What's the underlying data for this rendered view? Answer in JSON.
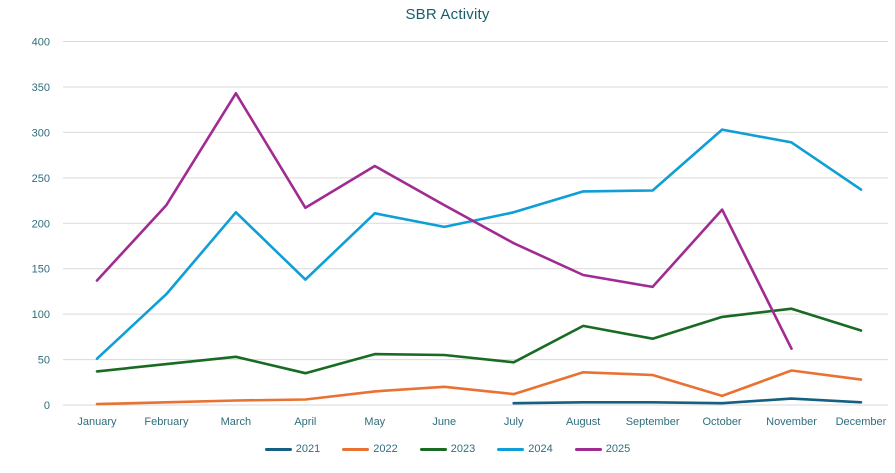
{
  "chart_data": {
    "type": "line",
    "title": "SBR Activity",
    "categories": [
      "January",
      "February",
      "March",
      "April",
      "May",
      "June",
      "July",
      "August",
      "September",
      "October",
      "November",
      "December"
    ],
    "series": [
      {
        "name": "2021",
        "color": "#156082",
        "values": [
          null,
          null,
          null,
          null,
          null,
          null,
          2,
          3,
          3,
          2,
          7,
          3
        ]
      },
      {
        "name": "2022",
        "color": "#E97132",
        "values": [
          1,
          3,
          5,
          6,
          15,
          20,
          12,
          36,
          33,
          10,
          38,
          28
        ]
      },
      {
        "name": "2023",
        "color": "#196B24",
        "values": [
          37,
          45,
          53,
          35,
          56,
          55,
          47,
          87,
          73,
          97,
          106,
          82
        ]
      },
      {
        "name": "2024",
        "color": "#0F9ED5",
        "values": [
          51,
          122,
          212,
          138,
          211,
          196,
          212,
          235,
          236,
          303,
          289,
          237
        ]
      },
      {
        "name": "2025",
        "color": "#A02B93",
        "values": [
          137,
          220,
          343,
          217,
          263,
          220,
          178,
          143,
          130,
          215,
          62,
          null
        ]
      }
    ],
    "xlabel": "",
    "ylabel": "",
    "ylim": [
      0,
      400
    ],
    "yticks": [
      0,
      50,
      100,
      150,
      200,
      250,
      300,
      350,
      400
    ],
    "grid": true,
    "legend_position": "bottom"
  },
  "colors": {
    "title_text": "#175E68",
    "axis_text": "#2E6E7C",
    "gridline": "#D9D9D9",
    "background": "#FFFFFF"
  }
}
